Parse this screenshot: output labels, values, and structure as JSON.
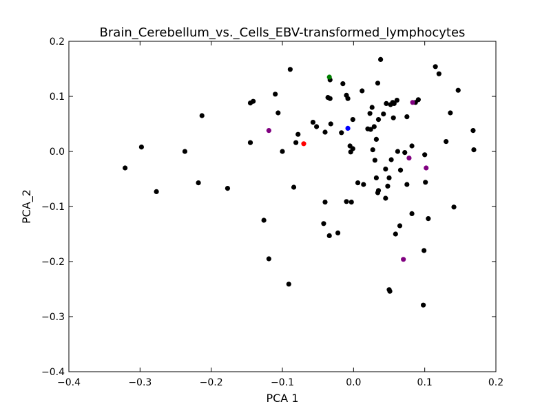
{
  "chart_data": {
    "type": "scatter",
    "title": "Brain_Cerebellum_vs._Cells_EBV-transformed_lymphocytes",
    "xlabel": "PCA 1",
    "ylabel": "PCA_2",
    "xlim": [
      -0.4,
      0.2
    ],
    "ylim": [
      -0.4,
      0.2
    ],
    "xticks": [
      -0.4,
      -0.3,
      -0.2,
      -0.1,
      0.0,
      0.1,
      0.2
    ],
    "yticks": [
      -0.4,
      -0.3,
      -0.2,
      -0.1,
      0.0,
      0.1,
      0.2
    ],
    "xtick_labels": [
      "−0.4",
      "−0.3",
      "−0.2",
      "−0.1",
      "0.0",
      "0.1",
      "0.2"
    ],
    "ytick_labels": [
      "−0.4",
      "−0.3",
      "−0.2",
      "−0.1",
      "0.0",
      "0.1",
      "0.2"
    ],
    "grid": false,
    "legend": "none",
    "colors": {
      "default": "#000000",
      "green": "#008000",
      "blue": "#0000ff",
      "red": "#ff0000",
      "purple": "#800080"
    },
    "points": [
      {
        "x": -0.321,
        "y": -0.03,
        "c": "default"
      },
      {
        "x": -0.298,
        "y": 0.008,
        "c": "default"
      },
      {
        "x": -0.277,
        "y": -0.073,
        "c": "default"
      },
      {
        "x": -0.237,
        "y": 0.0,
        "c": "default"
      },
      {
        "x": -0.218,
        "y": -0.057,
        "c": "default"
      },
      {
        "x": -0.213,
        "y": 0.065,
        "c": "default"
      },
      {
        "x": -0.177,
        "y": -0.067,
        "c": "default"
      },
      {
        "x": -0.145,
        "y": 0.088,
        "c": "default"
      },
      {
        "x": -0.141,
        "y": 0.091,
        "c": "default"
      },
      {
        "x": -0.145,
        "y": 0.016,
        "c": "default"
      },
      {
        "x": -0.126,
        "y": -0.125,
        "c": "default"
      },
      {
        "x": -0.119,
        "y": -0.195,
        "c": "default"
      },
      {
        "x": -0.119,
        "y": 0.038,
        "c": "purple"
      },
      {
        "x": -0.11,
        "y": 0.104,
        "c": "default"
      },
      {
        "x": -0.106,
        "y": 0.07,
        "c": "default"
      },
      {
        "x": -0.1,
        "y": 0.0,
        "c": "default"
      },
      {
        "x": -0.091,
        "y": -0.241,
        "c": "default"
      },
      {
        "x": -0.089,
        "y": 0.149,
        "c": "default"
      },
      {
        "x": -0.084,
        "y": -0.065,
        "c": "default"
      },
      {
        "x": -0.081,
        "y": 0.016,
        "c": "default"
      },
      {
        "x": -0.078,
        "y": 0.031,
        "c": "default"
      },
      {
        "x": -0.07,
        "y": 0.014,
        "c": "red"
      },
      {
        "x": -0.057,
        "y": 0.053,
        "c": "default"
      },
      {
        "x": -0.052,
        "y": 0.045,
        "c": "default"
      },
      {
        "x": -0.042,
        "y": -0.131,
        "c": "default"
      },
      {
        "x": -0.04,
        "y": 0.035,
        "c": "default"
      },
      {
        "x": -0.04,
        "y": -0.092,
        "c": "default"
      },
      {
        "x": -0.036,
        "y": 0.098,
        "c": "default"
      },
      {
        "x": -0.034,
        "y": -0.153,
        "c": "default"
      },
      {
        "x": -0.033,
        "y": 0.096,
        "c": "default"
      },
      {
        "x": -0.033,
        "y": 0.13,
        "c": "default"
      },
      {
        "x": -0.034,
        "y": 0.135,
        "c": "green"
      },
      {
        "x": -0.032,
        "y": 0.05,
        "c": "default"
      },
      {
        "x": -0.022,
        "y": -0.148,
        "c": "default"
      },
      {
        "x": -0.017,
        "y": 0.034,
        "c": "default"
      },
      {
        "x": -0.015,
        "y": 0.123,
        "c": "default"
      },
      {
        "x": -0.01,
        "y": 0.102,
        "c": "default"
      },
      {
        "x": -0.01,
        "y": -0.091,
        "c": "default"
      },
      {
        "x": -0.008,
        "y": 0.096,
        "c": "default"
      },
      {
        "x": -0.008,
        "y": 0.042,
        "c": "blue"
      },
      {
        "x": -0.005,
        "y": 0.01,
        "c": "default"
      },
      {
        "x": -0.004,
        "y": -0.001,
        "c": "default"
      },
      {
        "x": -0.003,
        "y": -0.092,
        "c": "default"
      },
      {
        "x": -0.001,
        "y": 0.058,
        "c": "default"
      },
      {
        "x": -0.001,
        "y": 0.005,
        "c": "default"
      },
      {
        "x": 0.006,
        "y": -0.057,
        "c": "default"
      },
      {
        "x": 0.012,
        "y": 0.11,
        "c": "default"
      },
      {
        "x": 0.014,
        "y": -0.06,
        "c": "default"
      },
      {
        "x": 0.02,
        "y": 0.041,
        "c": "default"
      },
      {
        "x": 0.023,
        "y": 0.069,
        "c": "default"
      },
      {
        "x": 0.024,
        "y": 0.04,
        "c": "default"
      },
      {
        "x": 0.026,
        "y": 0.08,
        "c": "default"
      },
      {
        "x": 0.027,
        "y": 0.003,
        "c": "default"
      },
      {
        "x": 0.029,
        "y": 0.045,
        "c": "default"
      },
      {
        "x": 0.03,
        "y": -0.016,
        "c": "default"
      },
      {
        "x": 0.032,
        "y": 0.022,
        "c": "default"
      },
      {
        "x": 0.032,
        "y": -0.048,
        "c": "default"
      },
      {
        "x": 0.034,
        "y": 0.124,
        "c": "default"
      },
      {
        "x": 0.034,
        "y": -0.075,
        "c": "default"
      },
      {
        "x": 0.035,
        "y": 0.058,
        "c": "default"
      },
      {
        "x": 0.035,
        "y": -0.071,
        "c": "default"
      },
      {
        "x": 0.038,
        "y": 0.167,
        "c": "default"
      },
      {
        "x": 0.042,
        "y": 0.068,
        "c": "default"
      },
      {
        "x": 0.045,
        "y": -0.085,
        "c": "default"
      },
      {
        "x": 0.045,
        "y": -0.032,
        "c": "default"
      },
      {
        "x": 0.046,
        "y": 0.087,
        "c": "default"
      },
      {
        "x": 0.048,
        "y": -0.063,
        "c": "default"
      },
      {
        "x": 0.05,
        "y": -0.048,
        "c": "default"
      },
      {
        "x": 0.05,
        "y": -0.251,
        "c": "default"
      },
      {
        "x": 0.051,
        "y": -0.254,
        "c": "default"
      },
      {
        "x": 0.052,
        "y": 0.085,
        "c": "default"
      },
      {
        "x": 0.053,
        "y": -0.015,
        "c": "default"
      },
      {
        "x": 0.055,
        "y": 0.089,
        "c": "default"
      },
      {
        "x": 0.056,
        "y": 0.061,
        "c": "default"
      },
      {
        "x": 0.057,
        "y": 0.087,
        "c": "default"
      },
      {
        "x": 0.059,
        "y": -0.15,
        "c": "default"
      },
      {
        "x": 0.061,
        "y": 0.093,
        "c": "default"
      },
      {
        "x": 0.062,
        "y": 0.0,
        "c": "default"
      },
      {
        "x": 0.065,
        "y": -0.135,
        "c": "default"
      },
      {
        "x": 0.066,
        "y": -0.034,
        "c": "default"
      },
      {
        "x": 0.07,
        "y": -0.196,
        "c": "purple"
      },
      {
        "x": 0.072,
        "y": -0.002,
        "c": "default"
      },
      {
        "x": 0.075,
        "y": 0.063,
        "c": "default"
      },
      {
        "x": 0.075,
        "y": -0.06,
        "c": "default"
      },
      {
        "x": 0.078,
        "y": -0.012,
        "c": "purple"
      },
      {
        "x": 0.082,
        "y": -0.113,
        "c": "default"
      },
      {
        "x": 0.082,
        "y": 0.01,
        "c": "default"
      },
      {
        "x": 0.083,
        "y": 0.089,
        "c": "purple"
      },
      {
        "x": 0.087,
        "y": 0.089,
        "c": "default"
      },
      {
        "x": 0.091,
        "y": 0.094,
        "c": "default"
      },
      {
        "x": 0.098,
        "y": -0.279,
        "c": "default"
      },
      {
        "x": 0.099,
        "y": -0.18,
        "c": "default"
      },
      {
        "x": 0.1,
        "y": -0.006,
        "c": "default"
      },
      {
        "x": 0.101,
        "y": -0.056,
        "c": "default"
      },
      {
        "x": 0.102,
        "y": -0.03,
        "c": "purple"
      },
      {
        "x": 0.105,
        "y": -0.122,
        "c": "default"
      },
      {
        "x": 0.115,
        "y": 0.154,
        "c": "default"
      },
      {
        "x": 0.12,
        "y": 0.141,
        "c": "default"
      },
      {
        "x": 0.13,
        "y": 0.018,
        "c": "default"
      },
      {
        "x": 0.136,
        "y": 0.07,
        "c": "default"
      },
      {
        "x": 0.141,
        "y": -0.101,
        "c": "default"
      },
      {
        "x": 0.147,
        "y": 0.111,
        "c": "default"
      },
      {
        "x": 0.168,
        "y": 0.038,
        "c": "default"
      },
      {
        "x": 0.169,
        "y": 0.003,
        "c": "default"
      }
    ]
  }
}
